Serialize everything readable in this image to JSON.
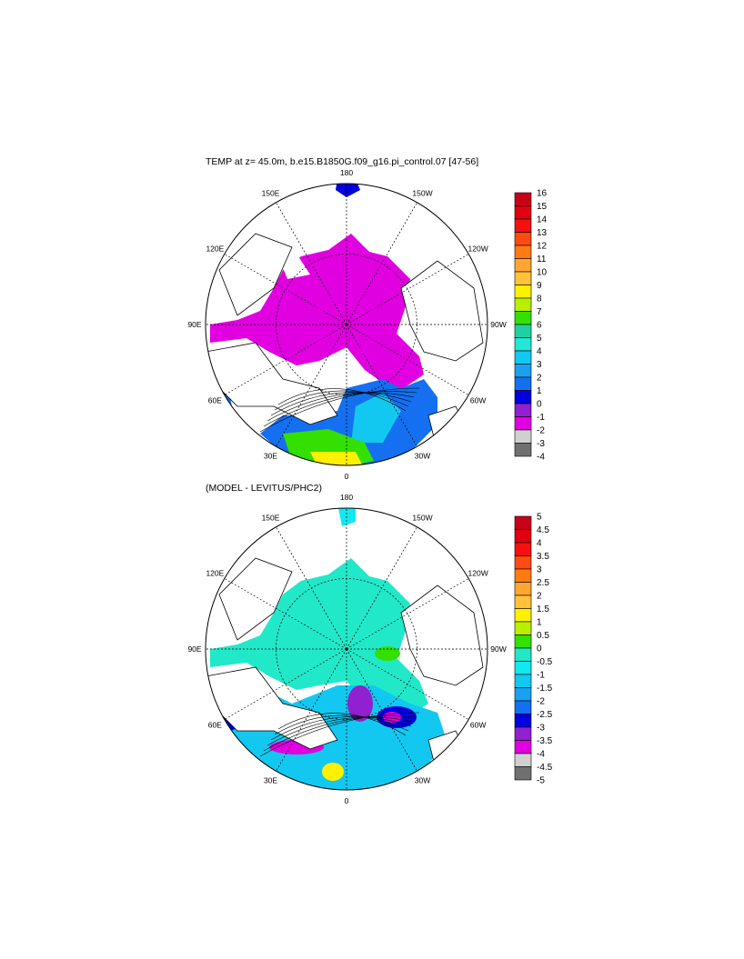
{
  "top_panel": {
    "title": "TEMP at z=  45.0m, b.e15.B1850G.f09_g16.pi_control.07 [47-56]",
    "longitude_labels": [
      "180",
      "150E",
      "120E",
      "90E",
      "60E",
      "30E",
      "0",
      "30W",
      "60W",
      "90W",
      "120W",
      "150W"
    ],
    "colorbar": {
      "labels": [
        "16",
        "15",
        "14",
        "13",
        "12",
        "11",
        "10",
        "9",
        "8",
        "7",
        "6",
        "5",
        "4",
        "3",
        "2",
        "1",
        "0",
        "-1",
        "-2",
        "-3",
        "-4"
      ],
      "colors": [
        "#c8001a",
        "#e00010",
        "#f51010",
        "#ff4a10",
        "#ff7a10",
        "#ffa530",
        "#ffc23a",
        "#fff000",
        "#b8f000",
        "#33e000",
        "#21d0a0",
        "#21e8d8",
        "#12c8f0",
        "#1aa0f0",
        "#1470f0",
        "#0000e0",
        "#9020d0",
        "#e000e0",
        "#d0d0d0",
        "#707070"
      ]
    }
  },
  "bottom_panel": {
    "title": "(MODEL - LEVITUS/PHC2)",
    "longitude_labels": [
      "180",
      "150E",
      "120E",
      "90E",
      "60E",
      "30E",
      "0",
      "30W",
      "60W",
      "90W",
      "120W",
      "150W"
    ],
    "colorbar": {
      "labels": [
        "5",
        "4.5",
        "4",
        "3.5",
        "3",
        "2.5",
        "2",
        "1.5",
        "1",
        "0.5",
        "0",
        "-0.5",
        "-1",
        "-1.5",
        "-2",
        "-2.5",
        "-3",
        "-3.5",
        "-4",
        "-4.5",
        "-5"
      ],
      "colors": [
        "#c8001a",
        "#e00010",
        "#f51010",
        "#ff4a10",
        "#ff7a10",
        "#ffa530",
        "#ffc23a",
        "#fff000",
        "#b8f000",
        "#33e000",
        "#21e8c8",
        "#12e8f0",
        "#12c8f0",
        "#1aa0f0",
        "#1470f0",
        "#0000e0",
        "#9020d0",
        "#e000e0",
        "#d0d0d0",
        "#707070"
      ]
    }
  }
}
